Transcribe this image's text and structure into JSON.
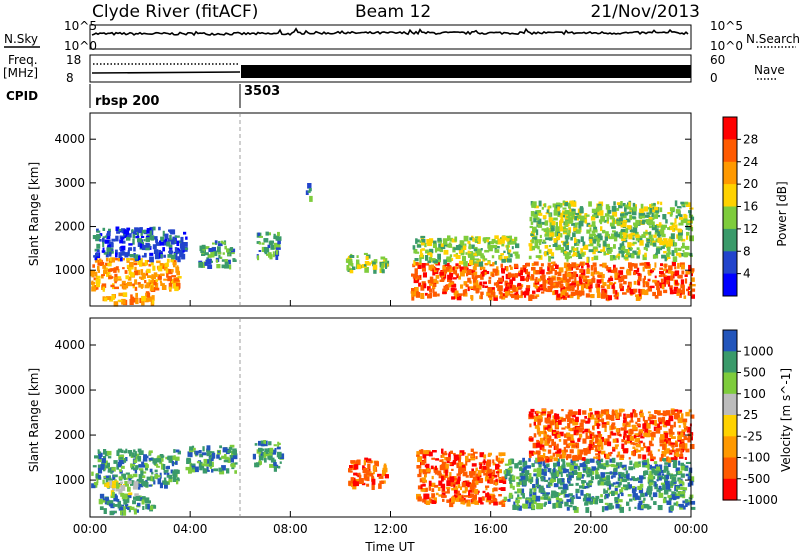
{
  "header": {
    "station": "Clyde River (fitACF)",
    "beam": "Beam 12",
    "date": "21/Nov/2013"
  },
  "status_panels": {
    "nsky_label": "N.Sky",
    "nsky_ticks": [
      "10^5",
      "10^0"
    ],
    "nsearch_label": "N.Search",
    "nsearch_ticks": [
      "10^5",
      "10^0"
    ],
    "freq_label": "Freq.",
    "freq_unit": "[MHz]",
    "freq_ticks": [
      "18",
      "8"
    ],
    "nave_label": "Nave",
    "nave_ticks": [
      "60",
      "0"
    ],
    "cpid_label": "CPID",
    "cpid_segments": [
      {
        "label": "rbsp 200",
        "start_hour": 0
      },
      {
        "label": "3503",
        "start_hour": 6
      }
    ]
  },
  "chart_data": [
    {
      "type": "heatmap",
      "title": "Power",
      "xlabel": "",
      "ylabel": "Slant Range [km]",
      "xlim": [
        0,
        24
      ],
      "ylim": [
        180,
        4600
      ],
      "yticks": [
        "1000",
        "2000",
        "3000",
        "4000"
      ],
      "colorbar": {
        "label": "Power [dB]",
        "ticks": [
          "28",
          "24",
          "20",
          "16",
          "12",
          "8",
          "4"
        ],
        "colors": [
          "#ff0000",
          "#ff5a00",
          "#ff9900",
          "#ffd200",
          "#7ecc3c",
          "#3a9a6a",
          "#2244cc",
          "#0000ff"
        ]
      },
      "echo_regions": [
        {
          "start_hour": 0.0,
          "end_hour": 3.5,
          "range_km": [
            600,
            1300
          ],
          "value_db": 26
        },
        {
          "start_hour": 0.5,
          "end_hour": 2.5,
          "range_km": [
            280,
            520
          ],
          "value_db": 26
        },
        {
          "start_hour": 0.1,
          "end_hour": 3.8,
          "range_km": [
            1300,
            2000
          ],
          "value_db": 8
        },
        {
          "start_hour": 4.3,
          "end_hour": 5.7,
          "range_km": [
            1100,
            1700
          ],
          "value_db": 12
        },
        {
          "start_hour": 6.6,
          "end_hour": 7.5,
          "range_km": [
            1300,
            1900
          ],
          "value_db": 14
        },
        {
          "start_hour": 8.6,
          "end_hour": 8.8,
          "range_km": [
            2700,
            3000
          ],
          "value_db": 12
        },
        {
          "start_hour": 10.2,
          "end_hour": 11.8,
          "range_km": [
            1000,
            1400
          ],
          "value_db": 18
        },
        {
          "start_hour": 12.8,
          "end_hour": 24.0,
          "range_km": [
            400,
            1200
          ],
          "value_db": 27
        },
        {
          "start_hour": 12.8,
          "end_hour": 17.0,
          "range_km": [
            1200,
            1800
          ],
          "value_db": 16
        },
        {
          "start_hour": 17.5,
          "end_hour": 24.0,
          "range_km": [
            1300,
            2600
          ],
          "value_db": 18
        }
      ]
    },
    {
      "type": "heatmap",
      "title": "Velocity",
      "xlabel": "Time UT",
      "ylabel": "Slant Range [km]",
      "xlim": [
        0,
        24
      ],
      "ylim": [
        180,
        4600
      ],
      "xticks": [
        "00:00",
        "04:00",
        "08:00",
        "12:00",
        "16:00",
        "20:00",
        "00:00"
      ],
      "yticks": [
        "1000",
        "2000",
        "3000",
        "4000"
      ],
      "colorbar": {
        "label": "Velocity [m s^-1]",
        "ticks": [
          "1000",
          "500",
          "100",
          "25",
          "-25",
          "-100",
          "-500",
          "-1000"
        ],
        "colors": [
          "#2255bb",
          "#3a9a6a",
          "#7ecc3c",
          "#bcbcbc",
          "#ffd200",
          "#ff9900",
          "#ff5a00",
          "#ff0000"
        ]
      },
      "echo_regions": [
        {
          "start_hour": 0.0,
          "end_hour": 3.5,
          "range_km": [
            900,
            1700
          ],
          "value_ms": 200
        },
        {
          "start_hour": 0.3,
          "end_hour": 2.5,
          "range_km": [
            300,
            700
          ],
          "value_ms": 200
        },
        {
          "start_hour": 0.5,
          "end_hour": 1.8,
          "range_km": [
            700,
            1000
          ],
          "value_ms": 0
        },
        {
          "start_hour": 3.8,
          "end_hour": 5.8,
          "range_km": [
            1200,
            1800
          ],
          "value_ms": 200
        },
        {
          "start_hour": 6.5,
          "end_hour": 7.6,
          "range_km": [
            1300,
            1900
          ],
          "value_ms": 200
        },
        {
          "start_hour": 10.3,
          "end_hour": 11.8,
          "range_km": [
            900,
            1500
          ],
          "value_ms": -200
        },
        {
          "start_hour": 13.0,
          "end_hour": 16.5,
          "range_km": [
            500,
            1700
          ],
          "value_ms": -200
        },
        {
          "start_hour": 16.5,
          "end_hour": 24.0,
          "range_km": [
            400,
            1500
          ],
          "value_ms": 300
        },
        {
          "start_hour": 17.5,
          "end_hour": 24.0,
          "range_km": [
            1500,
            2600
          ],
          "value_ms": -200
        }
      ]
    }
  ]
}
